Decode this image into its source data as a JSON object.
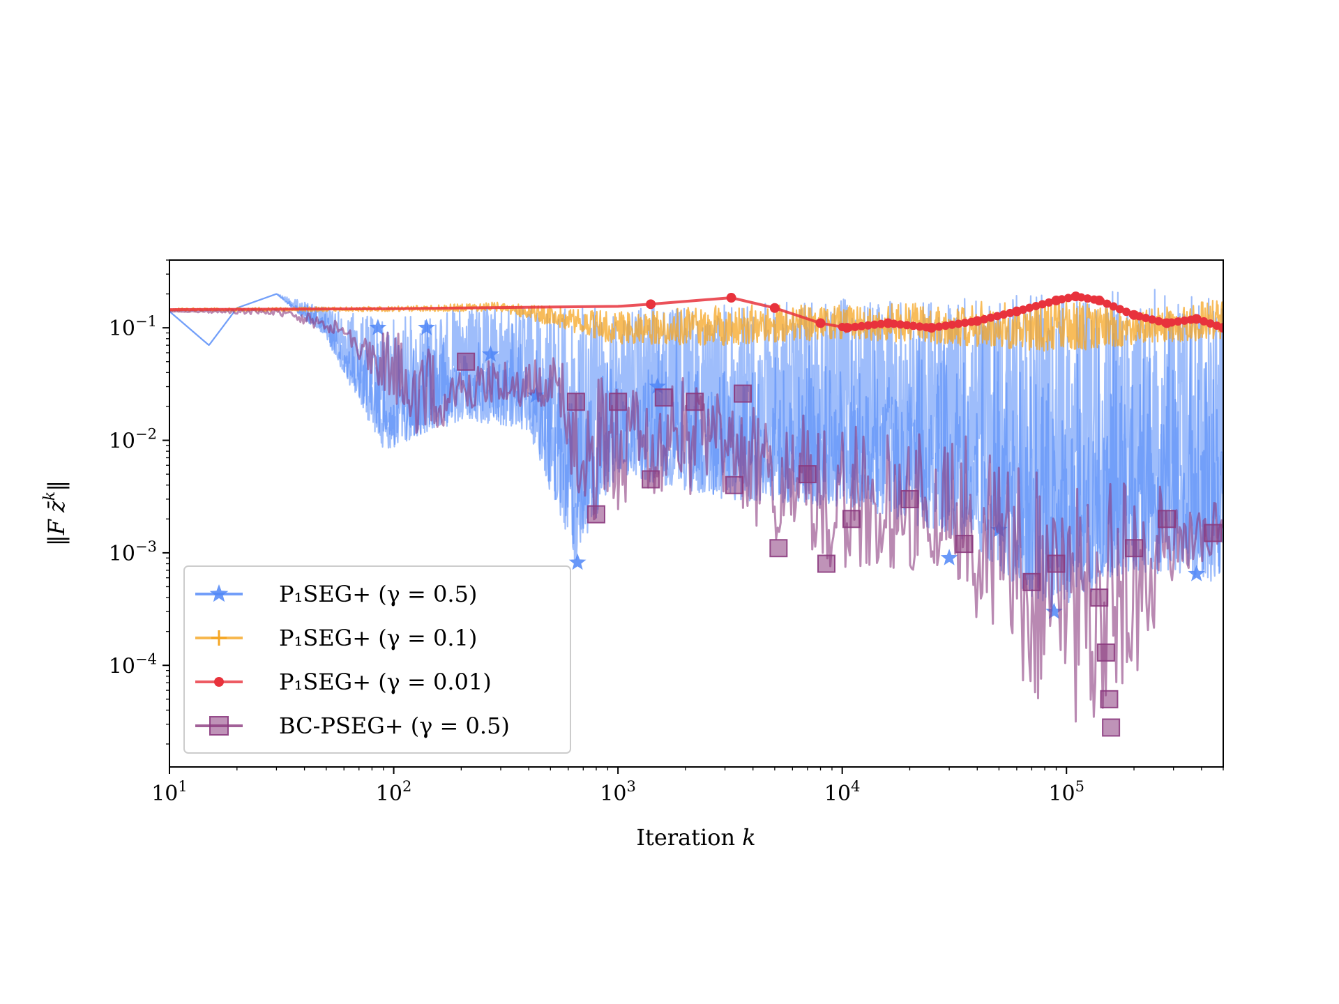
{
  "chart_data": {
    "type": "line",
    "title": "",
    "xlabel": "Iteration k",
    "ylabel": "‖F z̄ᵏ‖",
    "xscale": "log",
    "yscale": "log",
    "xlim": [
      10,
      500000
    ],
    "ylim": [
      1.25e-05,
      0.4
    ],
    "x_ticks": [
      {
        "value": 10,
        "base": "10",
        "exp": "1"
      },
      {
        "value": 100,
        "base": "10",
        "exp": "2"
      },
      {
        "value": 1000,
        "base": "10",
        "exp": "3"
      },
      {
        "value": 10000,
        "base": "10",
        "exp": "4"
      },
      {
        "value": 100000,
        "base": "10",
        "exp": "5"
      }
    ],
    "y_ticks": [
      {
        "value": 0.1,
        "base": "10",
        "exp": "−1"
      },
      {
        "value": 0.01,
        "base": "10",
        "exp": "−2"
      },
      {
        "value": 0.001,
        "base": "10",
        "exp": "−3"
      },
      {
        "value": 0.0001,
        "base": "10",
        "exp": "−4"
      }
    ],
    "grid": false,
    "legend_position": "lower-left",
    "series": [
      {
        "name": "P₁SEG+ (γ = 0.5)",
        "color": "#4f86f7",
        "marker": "star",
        "envelope": [
          {
            "x": 10,
            "lo": 0.14,
            "hi": 0.14
          },
          {
            "x": 15,
            "lo": 0.07,
            "hi": 0.07
          },
          {
            "x": 20,
            "lo": 0.15,
            "hi": 0.15
          },
          {
            "x": 30,
            "lo": 0.2,
            "hi": 0.2
          },
          {
            "x": 50,
            "lo": 0.08,
            "hi": 0.15
          },
          {
            "x": 90,
            "lo": 0.008,
            "hi": 0.12
          },
          {
            "x": 200,
            "lo": 0.015,
            "hi": 0.15
          },
          {
            "x": 400,
            "lo": 0.012,
            "hi": 0.16
          },
          {
            "x": 650,
            "lo": 0.0008,
            "hi": 0.15
          },
          {
            "x": 1000,
            "lo": 0.005,
            "hi": 0.15
          },
          {
            "x": 3000,
            "lo": 0.003,
            "hi": 0.16
          },
          {
            "x": 10000,
            "lo": 0.0025,
            "hi": 0.18
          },
          {
            "x": 30000,
            "lo": 0.0015,
            "hi": 0.18
          },
          {
            "x": 85000,
            "lo": 0.0003,
            "hi": 0.2
          },
          {
            "x": 200000,
            "lo": 0.0007,
            "hi": 0.22
          },
          {
            "x": 500000,
            "lo": 0.0005,
            "hi": 0.23
          }
        ],
        "markers": [
          {
            "x": 85,
            "y": 0.1
          },
          {
            "x": 140,
            "y": 0.1
          },
          {
            "x": 270,
            "y": 0.058
          },
          {
            "x": 430,
            "y": 0.025
          },
          {
            "x": 660,
            "y": 0.00082
          },
          {
            "x": 1500,
            "y": 0.03
          },
          {
            "x": 30000,
            "y": 0.0009
          },
          {
            "x": 50000,
            "y": 0.0016
          },
          {
            "x": 88000,
            "y": 0.0003
          },
          {
            "x": 380000,
            "y": 0.00065
          }
        ]
      },
      {
        "name": "P₁SEG+ (γ = 0.1)",
        "color": "#f5a623",
        "marker": "plus",
        "envelope": [
          {
            "x": 10,
            "lo": 0.14,
            "hi": 0.15
          },
          {
            "x": 100,
            "lo": 0.14,
            "hi": 0.155
          },
          {
            "x": 300,
            "lo": 0.14,
            "hi": 0.17
          },
          {
            "x": 1000,
            "lo": 0.07,
            "hi": 0.14
          },
          {
            "x": 3000,
            "lo": 0.07,
            "hi": 0.16
          },
          {
            "x": 10000,
            "lo": 0.08,
            "hi": 0.16
          },
          {
            "x": 30000,
            "lo": 0.07,
            "hi": 0.17
          },
          {
            "x": 100000,
            "lo": 0.06,
            "hi": 0.18
          },
          {
            "x": 200000,
            "lo": 0.07,
            "hi": 0.14
          },
          {
            "x": 500000,
            "lo": 0.08,
            "hi": 0.19
          }
        ]
      },
      {
        "name": "P₁SEG+ (γ = 0.01)",
        "color": "#e8323c",
        "marker": "circle",
        "points": [
          {
            "x": 10,
            "y": 0.145
          },
          {
            "x": 100,
            "y": 0.148
          },
          {
            "x": 1000,
            "y": 0.155
          },
          {
            "x": 1400,
            "y": 0.162
          },
          {
            "x": 3200,
            "y": 0.185
          },
          {
            "x": 5000,
            "y": 0.15
          },
          {
            "x": 8000,
            "y": 0.11
          },
          {
            "x": 10500,
            "y": 0.1
          },
          {
            "x": 16000,
            "y": 0.11
          },
          {
            "x": 25000,
            "y": 0.1
          },
          {
            "x": 40000,
            "y": 0.115
          },
          {
            "x": 60000,
            "y": 0.14
          },
          {
            "x": 90000,
            "y": 0.175
          },
          {
            "x": 110000,
            "y": 0.19
          },
          {
            "x": 140000,
            "y": 0.175
          },
          {
            "x": 200000,
            "y": 0.13
          },
          {
            "x": 280000,
            "y": 0.11
          },
          {
            "x": 380000,
            "y": 0.12
          },
          {
            "x": 500000,
            "y": 0.1
          }
        ]
      },
      {
        "name": "BC-PSEG+ (γ = 0.5)",
        "color": "#8b3a7e",
        "marker": "square",
        "envelope": [
          {
            "x": 10,
            "lo": 0.14,
            "hi": 0.14
          },
          {
            "x": 30,
            "lo": 0.13,
            "hi": 0.15
          },
          {
            "x": 60,
            "lo": 0.08,
            "hi": 0.12
          },
          {
            "x": 130,
            "lo": 0.01,
            "hi": 0.09
          },
          {
            "x": 250,
            "lo": 0.02,
            "hi": 0.06
          },
          {
            "x": 500,
            "lo": 0.02,
            "hi": 0.06
          },
          {
            "x": 700,
            "lo": 0.0018,
            "hi": 0.05
          },
          {
            "x": 1500,
            "lo": 0.003,
            "hi": 0.04
          },
          {
            "x": 3000,
            "lo": 0.003,
            "hi": 0.03
          },
          {
            "x": 6000,
            "lo": 0.0009,
            "hi": 0.02
          },
          {
            "x": 10000,
            "lo": 0.0006,
            "hi": 0.015
          },
          {
            "x": 30000,
            "lo": 0.0007,
            "hi": 0.012
          },
          {
            "x": 60000,
            "lo": 6e-05,
            "hi": 0.01
          },
          {
            "x": 150000,
            "lo": 2e-05,
            "hi": 0.006
          },
          {
            "x": 300000,
            "lo": 0.0005,
            "hi": 0.004
          },
          {
            "x": 500000,
            "lo": 0.0009,
            "hi": 0.003
          }
        ],
        "markers": [
          {
            "x": 210,
            "y": 0.05
          },
          {
            "x": 650,
            "y": 0.022
          },
          {
            "x": 800,
            "y": 0.0022
          },
          {
            "x": 1000,
            "y": 0.022
          },
          {
            "x": 1400,
            "y": 0.0045
          },
          {
            "x": 1600,
            "y": 0.024
          },
          {
            "x": 2200,
            "y": 0.022
          },
          {
            "x": 3300,
            "y": 0.004
          },
          {
            "x": 3600,
            "y": 0.026
          },
          {
            "x": 5200,
            "y": 0.0011
          },
          {
            "x": 7000,
            "y": 0.005
          },
          {
            "x": 8500,
            "y": 0.0008
          },
          {
            "x": 11000,
            "y": 0.002
          },
          {
            "x": 20000,
            "y": 0.003
          },
          {
            "x": 35000,
            "y": 0.0012
          },
          {
            "x": 70000,
            "y": 0.00055
          },
          {
            "x": 90000,
            "y": 0.0008
          },
          {
            "x": 140000,
            "y": 0.0004
          },
          {
            "x": 150000,
            "y": 0.00013
          },
          {
            "x": 155000,
            "y": 5e-05
          },
          {
            "x": 158000,
            "y": 2.8e-05
          },
          {
            "x": 200000,
            "y": 0.0011
          },
          {
            "x": 280000,
            "y": 0.002
          },
          {
            "x": 450000,
            "y": 0.0015
          }
        ]
      }
    ]
  }
}
